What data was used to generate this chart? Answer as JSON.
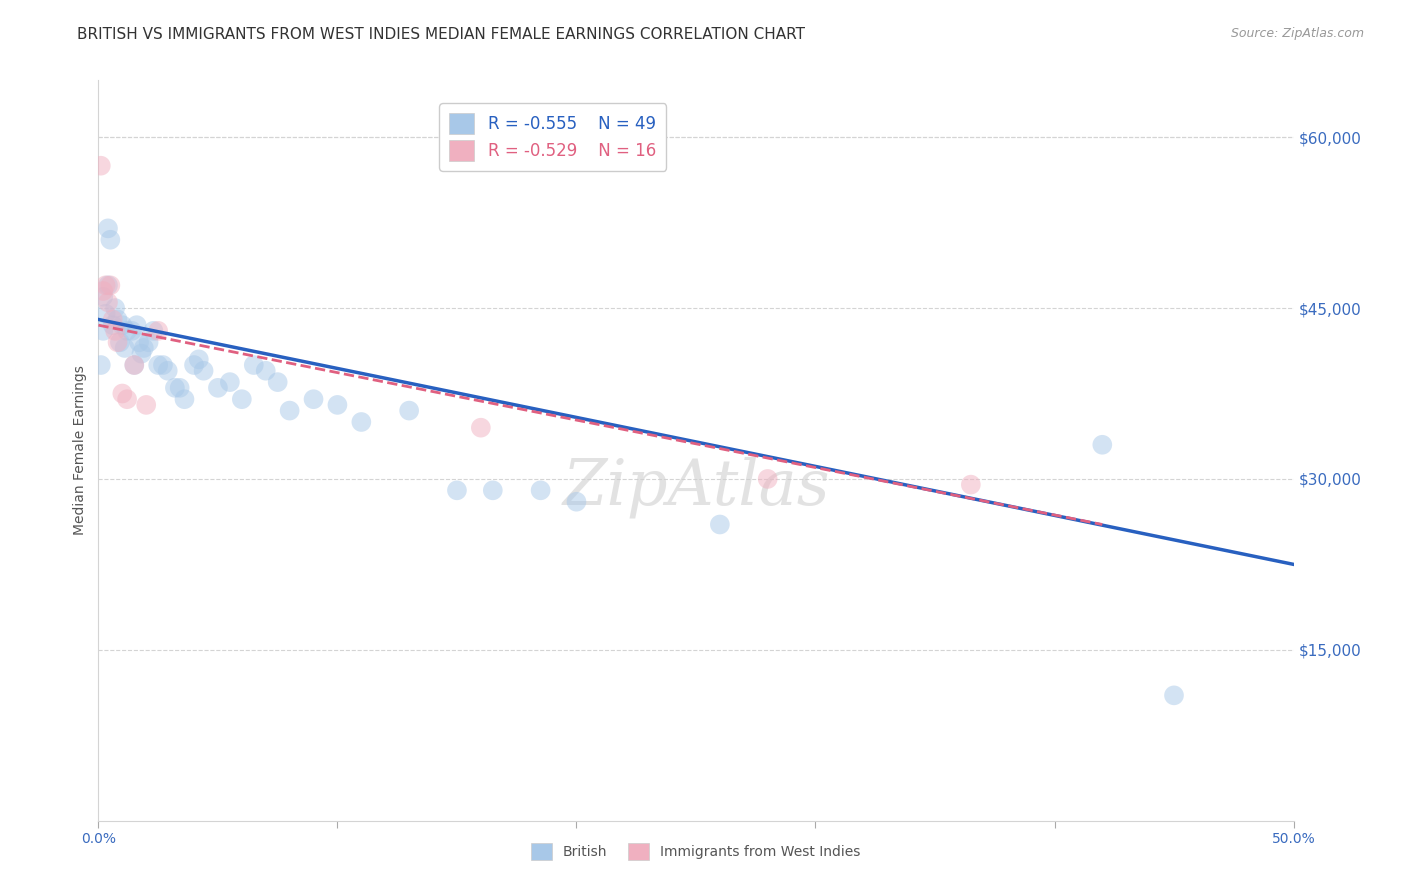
{
  "title": "BRITISH VS IMMIGRANTS FROM WEST INDIES MEDIAN FEMALE EARNINGS CORRELATION CHART",
  "source": "Source: ZipAtlas.com",
  "ylabel": "Median Female Earnings",
  "xlim": [
    0.0,
    0.5
  ],
  "ylim": [
    0,
    65000
  ],
  "xticks": [
    0.0,
    0.1,
    0.2,
    0.3,
    0.4,
    0.5
  ],
  "xticklabels": [
    "0.0%",
    "",
    "",
    "",
    "",
    "50.0%"
  ],
  "yticks_right": [
    15000,
    30000,
    45000,
    60000
  ],
  "ytick_labels_right": [
    "$15,000",
    "$30,000",
    "$45,000",
    "$60,000"
  ],
  "watermark": "ZipAtlas",
  "british_R": -0.555,
  "british_N": 49,
  "westindies_R": -0.529,
  "westindies_N": 16,
  "british_color": "#a8c8e8",
  "british_line_color": "#2860c0",
  "westindies_color": "#f0b0c0",
  "westindies_line_color": "#e06080",
  "british_line_x0": 0.0,
  "british_line_y0": 44000,
  "british_line_x1": 0.5,
  "british_line_y1": 22500,
  "westindies_line_x0": 0.0,
  "westindies_line_y0": 43500,
  "westindies_line_x1": 0.42,
  "westindies_line_y1": 26000,
  "british_scatter_x": [
    0.001,
    0.002,
    0.002,
    0.003,
    0.004,
    0.004,
    0.005,
    0.006,
    0.007,
    0.008,
    0.009,
    0.01,
    0.011,
    0.012,
    0.014,
    0.015,
    0.016,
    0.017,
    0.018,
    0.019,
    0.021,
    0.023,
    0.025,
    0.027,
    0.029,
    0.032,
    0.034,
    0.036,
    0.04,
    0.042,
    0.044,
    0.05,
    0.055,
    0.06,
    0.065,
    0.07,
    0.075,
    0.08,
    0.09,
    0.1,
    0.11,
    0.13,
    0.15,
    0.165,
    0.185,
    0.2,
    0.26,
    0.42,
    0.45
  ],
  "british_scatter_y": [
    40000,
    46000,
    43000,
    44500,
    47000,
    52000,
    51000,
    43500,
    45000,
    44000,
    42000,
    43500,
    41500,
    43000,
    43000,
    40000,
    43500,
    42000,
    41000,
    41500,
    42000,
    43000,
    40000,
    40000,
    39500,
    38000,
    38000,
    37000,
    40000,
    40500,
    39500,
    38000,
    38500,
    37000,
    40000,
    39500,
    38500,
    36000,
    37000,
    36500,
    35000,
    36000,
    29000,
    29000,
    29000,
    28000,
    26000,
    33000,
    11000
  ],
  "westindies_scatter_x": [
    0.001,
    0.002,
    0.003,
    0.004,
    0.005,
    0.006,
    0.007,
    0.008,
    0.01,
    0.012,
    0.015,
    0.02,
    0.025,
    0.16,
    0.28,
    0.365
  ],
  "westindies_scatter_y": [
    57500,
    46500,
    47000,
    45500,
    47000,
    44000,
    43000,
    42000,
    37500,
    37000,
    40000,
    36500,
    43000,
    34500,
    30000,
    29500
  ],
  "legend_label_british": "British",
  "legend_label_westindies": "Immigrants from West Indies",
  "grid_color": "#d4d4d4",
  "background_color": "#ffffff",
  "title_fontsize": 11,
  "axis_fontsize": 10,
  "scatter_size": 200,
  "scatter_alpha": 0.5
}
